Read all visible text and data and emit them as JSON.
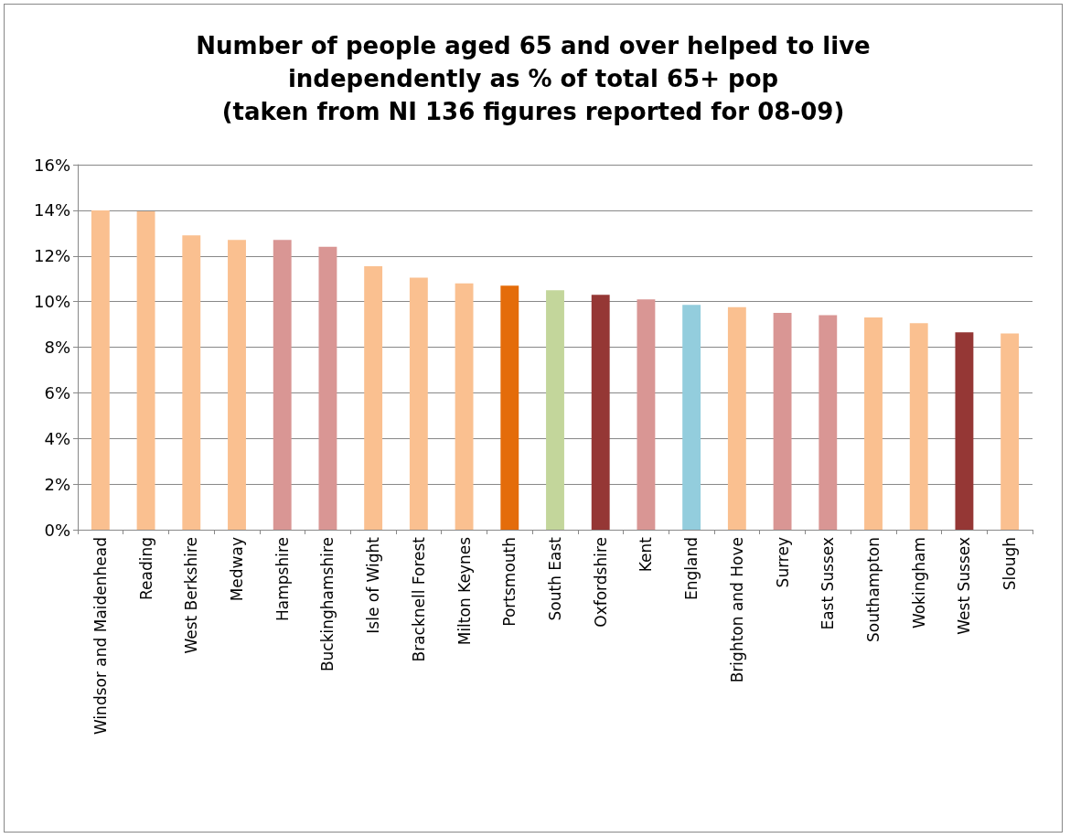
{
  "chart_data": {
    "type": "bar",
    "title": "Number of people aged 65 and over helped to live\nindependently as % of total 65+ pop\n(taken from NI 136 figures reported for 08-09)",
    "categories": [
      "Windsor and Maidenhead",
      "Reading",
      "West Berkshire",
      "Medway",
      "Hampshire",
      "Buckinghamshire",
      "Isle of Wight",
      "Bracknell Forest",
      "Milton Keynes",
      "Portsmouth",
      "South East",
      "Oxfordshire",
      "Kent",
      "England",
      "Brighton and Hove",
      "Surrey",
      "East Sussex",
      "Southampton",
      "Wokingham",
      "West Sussex",
      "Slough"
    ],
    "values": [
      14.0,
      13.95,
      12.9,
      12.7,
      12.7,
      12.4,
      11.55,
      11.05,
      10.8,
      10.7,
      10.5,
      10.3,
      10.1,
      9.85,
      9.75,
      9.5,
      9.4,
      9.3,
      9.05,
      8.65,
      8.6
    ],
    "colors": [
      "#fac090",
      "#fac090",
      "#fac090",
      "#fac090",
      "#d99694",
      "#d99694",
      "#fac090",
      "#fac090",
      "#fac090",
      "#e46c0a",
      "#c3d69b",
      "#953735",
      "#d99694",
      "#93cddd",
      "#fac090",
      "#d99694",
      "#d99694",
      "#fac090",
      "#fac090",
      "#953735",
      "#fac090"
    ],
    "ylim": [
      0,
      16
    ],
    "yticks": [
      {
        "value": 0,
        "label": "0%"
      },
      {
        "value": 2,
        "label": "2%"
      },
      {
        "value": 4,
        "label": "4%"
      },
      {
        "value": 6,
        "label": "6%"
      },
      {
        "value": 8,
        "label": "8%"
      },
      {
        "value": 10,
        "label": "10%"
      },
      {
        "value": 12,
        "label": "12%"
      },
      {
        "value": 14,
        "label": "14%"
      },
      {
        "value": 16,
        "label": "16%"
      }
    ],
    "grid": "y"
  }
}
